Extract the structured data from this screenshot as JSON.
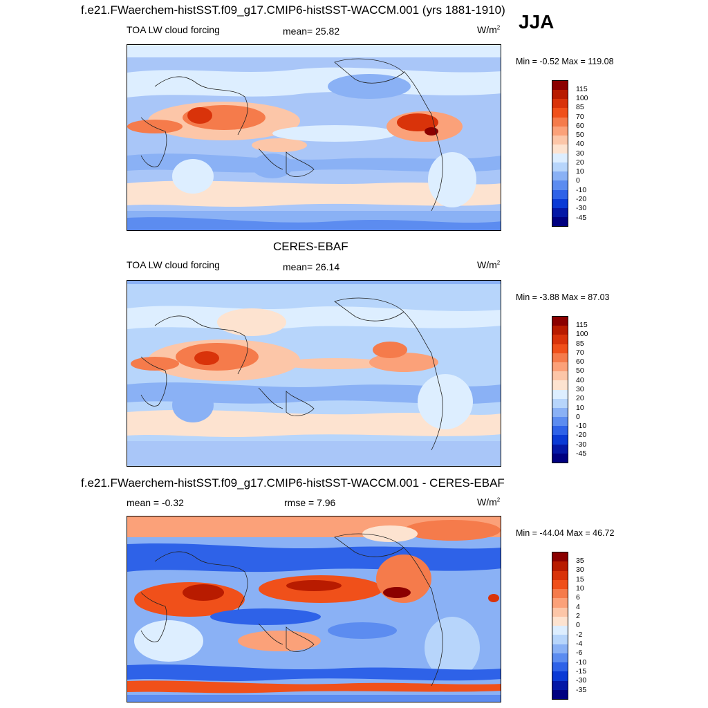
{
  "figure_title": "f.e21.FWaerchem-histSST.f09_g17.CMIP6-histSST-WACCM.001 (yrs 1881-1910)",
  "season": "JJA",
  "panels": [
    {
      "variable": "TOA LW cloud forcing",
      "stat": "mean=  25.82",
      "units": "W/m",
      "units_sup": "2",
      "minmax": "Min =  -0.52 Max = 119.08",
      "colorbar": {
        "labels": [
          "115",
          "100",
          "85",
          "70",
          "60",
          "50",
          "40",
          "30",
          "20",
          "10",
          "0",
          "-10",
          "-20",
          "-30",
          "-45"
        ],
        "colors": [
          "#8b0000",
          "#b81b00",
          "#d9330a",
          "#f0501a",
          "#f57b4b",
          "#fba179",
          "#fcc6a8",
          "#fde3d0",
          "#ddeeff",
          "#b7d5fb",
          "#8ab1f5",
          "#5c8cf0",
          "#2e62e8",
          "#0a3ad5",
          "#0418a6",
          "#000080"
        ]
      }
    },
    {
      "title": "CERES-EBAF",
      "variable": "TOA LW cloud forcing",
      "stat": "mean=  26.14",
      "units": "W/m",
      "units_sup": "2",
      "minmax": "Min =  -3.88 Max =  87.03",
      "colorbar": {
        "labels": [
          "115",
          "100",
          "85",
          "70",
          "60",
          "50",
          "40",
          "30",
          "20",
          "10",
          "0",
          "-10",
          "-20",
          "-30",
          "-45"
        ],
        "colors": [
          "#8b0000",
          "#b81b00",
          "#d9330a",
          "#f0501a",
          "#f57b4b",
          "#fba179",
          "#fcc6a8",
          "#fde3d0",
          "#ddeeff",
          "#b7d5fb",
          "#8ab1f5",
          "#5c8cf0",
          "#2e62e8",
          "#0a3ad5",
          "#0418a6",
          "#000080"
        ]
      }
    },
    {
      "title": "f.e21.FWaerchem-histSST.f09_g17.CMIP6-histSST-WACCM.001 - CERES-EBAF",
      "stat_left": "mean =  -0.32",
      "stat": "rmse =   7.96",
      "units": "W/m",
      "units_sup": "2",
      "minmax": "Min = -44.04 Max =  46.72",
      "colorbar": {
        "labels": [
          "35",
          "30",
          "15",
          "10",
          "6",
          "4",
          "2",
          "0",
          "-2",
          "-4",
          "-6",
          "-10",
          "-15",
          "-30",
          "-35"
        ],
        "colors": [
          "#8b0000",
          "#b81b00",
          "#d9330a",
          "#f0501a",
          "#f57b4b",
          "#fba179",
          "#fcc6a8",
          "#fde3d0",
          "#ddeeff",
          "#b7d5fb",
          "#8ab1f5",
          "#5c8cf0",
          "#2e62e8",
          "#0a3ad5",
          "#0418a6",
          "#000080"
        ]
      }
    }
  ],
  "colors": {
    "map_background_1": "#a9c6f8",
    "map_background_3": "#5c8cf0",
    "coastline": "#222222"
  }
}
